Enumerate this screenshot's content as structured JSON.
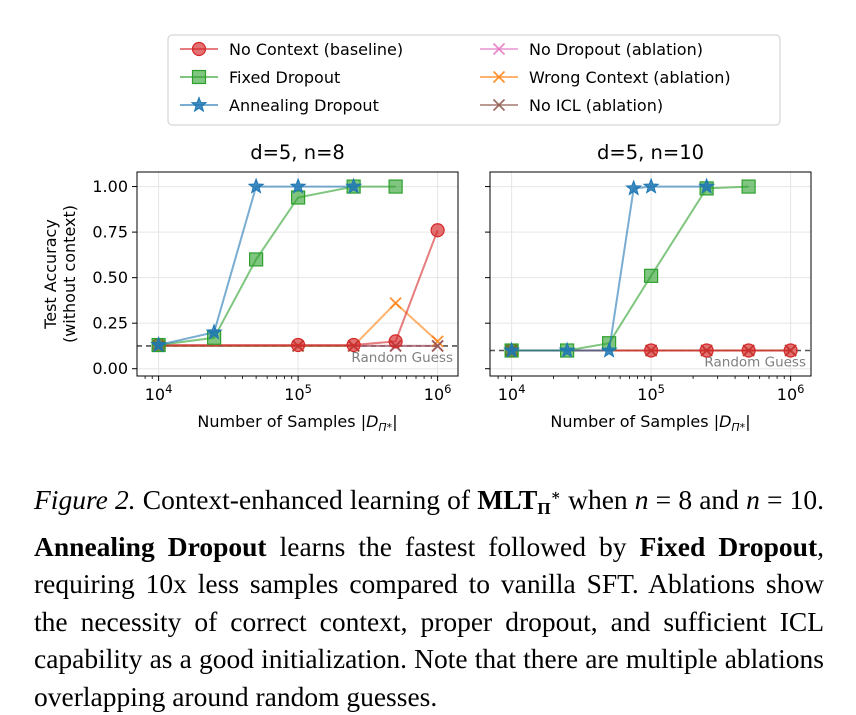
{
  "chart_data": [
    {
      "type": "line",
      "title": "d=5, n=8",
      "xlabel": "Number of Samples |D_{Π*}|",
      "ylabel": "Test Accuracy (without context)",
      "xscale": "log",
      "xlim": [
        7000,
        1400000
      ],
      "ylim": [
        -0.04,
        1.08
      ],
      "xticks": [
        10000,
        100000,
        1000000
      ],
      "xtick_labels": [
        [
          "10",
          "4"
        ],
        [
          "10",
          "5"
        ],
        [
          "10",
          "6"
        ]
      ],
      "yticks": [
        0.0,
        0.25,
        0.5,
        0.75,
        1.0
      ],
      "ytick_labels": [
        "0.00",
        "0.25",
        "0.50",
        "0.75",
        "1.00"
      ],
      "grid": true,
      "reference_line": {
        "y": 0.125,
        "label": "Random Guess",
        "style": "dashed"
      },
      "series": [
        {
          "name": "No Context (baseline)",
          "color": "#d62728",
          "marker": "circle",
          "x": [
            10000,
            100000,
            250000,
            500000,
            1000000
          ],
          "y": [
            0.13,
            0.13,
            0.13,
            0.15,
            0.76
          ]
        },
        {
          "name": "Fixed Dropout",
          "color": "#2ca02c",
          "marker": "square",
          "x": [
            10000,
            25000,
            50000,
            100000,
            250000,
            500000
          ],
          "y": [
            0.13,
            0.17,
            0.6,
            0.94,
            1.0,
            1.0
          ]
        },
        {
          "name": "Annealing Dropout",
          "color": "#1f77b4",
          "marker": "star",
          "x": [
            10000,
            25000,
            50000,
            100000,
            250000
          ],
          "y": [
            0.13,
            0.2,
            1.0,
            1.0,
            1.0
          ]
        },
        {
          "name": "No Dropout (ablation)",
          "color": "#e377c2",
          "marker": "x",
          "x": [
            10000,
            100000,
            250000,
            500000,
            1000000
          ],
          "y": [
            0.125,
            0.125,
            0.125,
            0.125,
            0.125
          ]
        },
        {
          "name": "Wrong Context (ablation)",
          "color": "#ff7f0e",
          "marker": "x",
          "x": [
            10000,
            100000,
            250000,
            500000,
            1000000
          ],
          "y": [
            0.125,
            0.125,
            0.125,
            0.36,
            0.15
          ]
        },
        {
          "name": "No ICL (ablation)",
          "color": "#8c564b",
          "marker": "x",
          "x": [
            10000,
            100000,
            250000,
            500000,
            1000000
          ],
          "y": [
            0.125,
            0.125,
            0.125,
            0.125,
            0.125
          ]
        }
      ]
    },
    {
      "type": "line",
      "title": "d=5, n=10",
      "xlabel": "Number of Samples |D_{Π*}|",
      "xscale": "log",
      "xlim": [
        7000,
        1400000
      ],
      "ylim": [
        -0.04,
        1.08
      ],
      "xticks": [
        10000,
        100000,
        1000000
      ],
      "xtick_labels": [
        [
          "10",
          "4"
        ],
        [
          "10",
          "5"
        ],
        [
          "10",
          "6"
        ]
      ],
      "yticks": [
        0.0,
        0.25,
        0.5,
        0.75,
        1.0
      ],
      "grid": true,
      "reference_line": {
        "y": 0.1,
        "label": "Random Guess",
        "style": "dashed"
      },
      "series": [
        {
          "name": "No Context (baseline)",
          "color": "#d62728",
          "marker": "circle",
          "x": [
            10000,
            100000,
            250000,
            500000,
            1000000
          ],
          "y": [
            0.1,
            0.1,
            0.1,
            0.1,
            0.1
          ]
        },
        {
          "name": "Fixed Dropout",
          "color": "#2ca02c",
          "marker": "square",
          "x": [
            10000,
            25000,
            50000,
            100000,
            250000,
            500000
          ],
          "y": [
            0.1,
            0.1,
            0.14,
            0.51,
            0.99,
            1.0
          ]
        },
        {
          "name": "Annealing Dropout",
          "color": "#1f77b4",
          "marker": "star",
          "x": [
            10000,
            25000,
            50000,
            75000,
            100000,
            250000
          ],
          "y": [
            0.1,
            0.1,
            0.1,
            0.99,
            1.0,
            1.0
          ]
        },
        {
          "name": "No Dropout (ablation)",
          "color": "#e377c2",
          "marker": "x",
          "x": [
            10000,
            100000,
            250000,
            500000,
            1000000
          ],
          "y": [
            0.1,
            0.1,
            0.1,
            0.1,
            0.1
          ]
        },
        {
          "name": "Wrong Context (ablation)",
          "color": "#ff7f0e",
          "marker": "x",
          "x": [
            10000,
            100000,
            250000,
            500000,
            1000000
          ],
          "y": [
            0.1,
            0.1,
            0.1,
            0.1,
            0.1
          ]
        },
        {
          "name": "No ICL (ablation)",
          "color": "#8c564b",
          "marker": "x",
          "x": [
            10000,
            100000,
            250000,
            500000,
            1000000
          ],
          "y": [
            0.1,
            0.1,
            0.1,
            0.1,
            0.1
          ]
        }
      ]
    }
  ],
  "legend": {
    "placement": "top-center",
    "entries": [
      {
        "label": "No Context (baseline)",
        "color": "#d62728",
        "marker": "circle"
      },
      {
        "label": "Fixed Dropout",
        "color": "#2ca02c",
        "marker": "square"
      },
      {
        "label": "Annealing Dropout",
        "color": "#1f77b4",
        "marker": "star"
      },
      {
        "label": "No Dropout (ablation)",
        "color": "#e377c2",
        "marker": "x"
      },
      {
        "label": "Wrong Context (ablation)",
        "color": "#ff7f0e",
        "marker": "x"
      },
      {
        "label": "No ICL (ablation)",
        "color": "#8c564b",
        "marker": "x"
      }
    ]
  },
  "ylabel_lines": [
    "Test Accuracy",
    "(without context)"
  ],
  "xlabel_parts": {
    "text": "Number of Samples |",
    "sym": "D",
    "sub": "Π*",
    "end": "|"
  },
  "caption": {
    "label": "Figure 2.",
    "t1": " Context-enhanced learning of ",
    "mlt": "MLT",
    "mlt_sub": "Π",
    "mlt_sup": "∗",
    "t2": " when ",
    "n1": "n",
    "t3": " = 8 and ",
    "n2": "n",
    "t4": " = 10. ",
    "b1": "Annealing Dropout",
    "t5": " learns the fastest followed by ",
    "b2": "Fixed Dropout",
    "t6": ", requiring 10x less samples compared to vanilla SFT. Ablations show the necessity of correct context, proper dropout, and sufficient ICL capability as a good initialization. Note that there are multiple ablations overlapping around random guesses."
  }
}
